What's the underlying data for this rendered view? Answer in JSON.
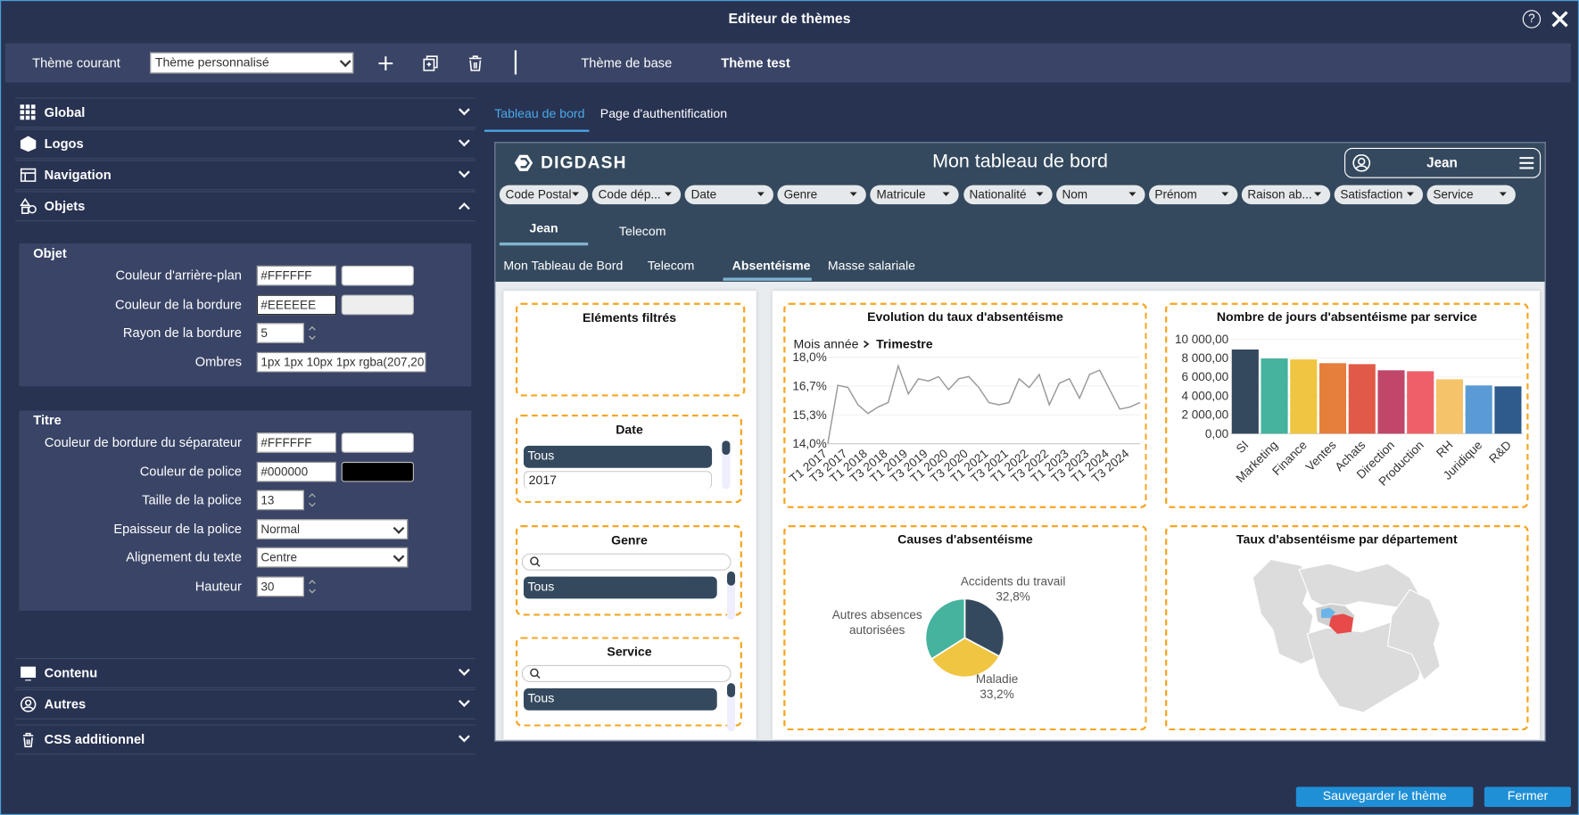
{
  "header": {
    "title": "Editeur de thèmes"
  },
  "toolbar": {
    "label": "Thème courant",
    "select": "Thème personnalisé",
    "tabs": [
      "Thème de base",
      "Thème test"
    ]
  },
  "sidebar": {
    "top_sections": [
      "Global",
      "Logos",
      "Navigation",
      "Objets"
    ],
    "groups": [
      {
        "title": "Objet",
        "fields": [
          {
            "label": "Couleur d'arrière-plan",
            "value": "#FFFFFF"
          },
          {
            "label": "Couleur de la bordure",
            "value": "#EEEEEE"
          },
          {
            "label": "Rayon de la bordure",
            "value": "5"
          },
          {
            "label": "Ombres",
            "value": "1px 1px 10px 1px rgba(207,20"
          }
        ]
      },
      {
        "title": "Titre",
        "fields": [
          {
            "label": "Couleur de bordure du séparateur",
            "value": "#FFFFFF"
          },
          {
            "label": "Couleur de police",
            "value": "#000000"
          },
          {
            "label": "Taille de la police",
            "value": "13"
          },
          {
            "label": "Epaisseur de la police",
            "value": "Normal"
          },
          {
            "label": "Alignement du texte",
            "value": "Centre"
          },
          {
            "label": "Hauteur",
            "value": "30"
          }
        ]
      }
    ],
    "bottom_sections": [
      "Contenu",
      "Autres",
      "CSS additionnel"
    ]
  },
  "preview_tabs": [
    "Tableau de bord",
    "Page d'authentification"
  ],
  "dashboard": {
    "logo": "DIGDASH",
    "title": "Mon tableau de bord",
    "user": "Jean",
    "filters": [
      "Code Postal",
      "Code dép...",
      "Date",
      "Genre",
      "Matricule",
      "Nationalité",
      "Nom",
      "Prénom",
      "Raison ab...",
      "Satisfaction",
      "Service"
    ],
    "nav_primary": [
      "Jean",
      "Telecom"
    ],
    "nav_secondary": [
      "Mon Tableau de Bord",
      "Telecom",
      "Absentéisme",
      "Masse salariale"
    ],
    "filter_panels": [
      {
        "title": "Eléments filtrés",
        "items": []
      },
      {
        "title": "Date",
        "items": [
          "Tous",
          "2017"
        ]
      },
      {
        "title": "Genre",
        "items": [
          "Tous"
        ]
      },
      {
        "title": "Service",
        "items": [
          "Tous"
        ]
      }
    ],
    "line_chart": {
      "type": "line",
      "title": "Evolution du taux d'absentéisme",
      "breadcrumb": [
        "Mois année",
        "Trimestre"
      ],
      "categories": [
        "T1 2017",
        null,
        "T3 2017",
        null,
        "T1 2018",
        null,
        "T3 2018",
        null,
        "T1 2019",
        null,
        "T3 2019",
        null,
        "T1 2020",
        null,
        "T3 2020",
        null,
        "T1 2021",
        null,
        "T3 2021",
        null,
        "T1 2022",
        null,
        "T3 2022",
        null,
        "T1 2023",
        null,
        "T3 2023",
        null,
        "T1 2024",
        null,
        "T3 2024",
        null
      ],
      "values": [
        14.0,
        16.7,
        16.6,
        15.8,
        15.4,
        15.7,
        15.9,
        17.6,
        16.3,
        17.0,
        16.9,
        17.1,
        16.5,
        17.0,
        17.1,
        16.6,
        15.9,
        15.8,
        15.9,
        17.0,
        16.6,
        17.2,
        15.8,
        16.8,
        17.0,
        16.1,
        17.2,
        17.4,
        16.5,
        15.6,
        15.7,
        15.9
      ],
      "color": "#9a9a9a",
      "ylim": [
        14,
        18
      ],
      "yticks": [
        {
          "value": 14,
          "label": "14,0%"
        },
        {
          "value": 15.333,
          "label": "15,3%"
        },
        {
          "value": 16.667,
          "label": "16,7%"
        },
        {
          "value": 18,
          "label": "18,0%"
        }
      ]
    },
    "bar_chart": {
      "type": "bar",
      "title": "Nombre de jours d'absentéisme par service",
      "categories": [
        "SI",
        "Marketing",
        "Finance",
        "Ventes",
        "Achats",
        "Direction",
        "Production",
        "RH",
        "Juridique",
        "R&D"
      ],
      "values": [
        8900,
        7950,
        7850,
        7450,
        7350,
        6700,
        6600,
        5750,
        5100,
        5000
      ],
      "colors": [
        "#34495e",
        "#45b39d",
        "#f0c541",
        "#e67e3c",
        "#e05a47",
        "#c0476a",
        "#ef5f6a",
        "#f5c46a",
        "#5b9bd5",
        "#2e5b8a"
      ],
      "ylim": [
        0,
        10000
      ],
      "yticks": [
        {
          "value": 0,
          "label": "0,00"
        },
        {
          "value": 2000,
          "label": "2 000,00"
        },
        {
          "value": 4000,
          "label": "4 000,00"
        },
        {
          "value": 6000,
          "label": "6 000,00"
        },
        {
          "value": 8000,
          "label": "8 000,00"
        },
        {
          "value": 10000,
          "label": "10 000,00"
        }
      ]
    },
    "pie_chart": {
      "type": "pie",
      "title": "Causes d'absentéisme",
      "categories": [
        "Accidents du travail",
        "Maladie",
        "Autres absences autorisées"
      ],
      "values": [
        32.8,
        33.2,
        34.0
      ],
      "value_labels": [
        "32,8%",
        "33,2%",
        null
      ],
      "colors": [
        "#34495e",
        "#f0c541",
        "#45b39d"
      ]
    },
    "map": {
      "title": "Taux d'absentéisme par département"
    }
  },
  "footer": {
    "buttons": [
      "Sauvegarder le thème",
      "Fermer"
    ]
  }
}
